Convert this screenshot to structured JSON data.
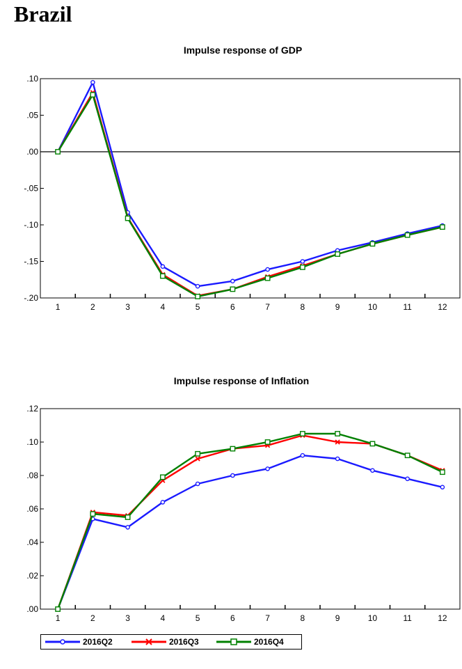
{
  "page": {
    "title": "Brazil"
  },
  "chart_data": [
    {
      "type": "line",
      "title": "Impulse response of GDP",
      "xlabel": "",
      "ylabel": "",
      "categories": [
        "1",
        "2",
        "3",
        "4",
        "5",
        "6",
        "7",
        "8",
        "9",
        "10",
        "11",
        "12"
      ],
      "ylim": [
        -0.2,
        0.1
      ],
      "yticks": [
        ".10",
        ".05",
        ".00",
        "-.05",
        "-.10",
        "-.15",
        "-.20"
      ],
      "zero_line": true,
      "series": [
        {
          "name": "2016Q2",
          "color": "#1a1aff",
          "marker": "circle",
          "values": [
            0.0,
            0.095,
            -0.083,
            -0.157,
            -0.184,
            -0.177,
            -0.161,
            -0.15,
            -0.135,
            -0.124,
            -0.112,
            -0.101
          ]
        },
        {
          "name": "2016Q3",
          "color": "#ff0000",
          "marker": "x",
          "values": [
            0.0,
            0.081,
            -0.09,
            -0.168,
            -0.197,
            -0.188,
            -0.171,
            -0.156,
            -0.14,
            -0.126,
            -0.114,
            -0.103
          ]
        },
        {
          "name": "2016Q4",
          "color": "#008000",
          "marker": "square",
          "values": [
            0.0,
            0.078,
            -0.091,
            -0.17,
            -0.198,
            -0.188,
            -0.173,
            -0.158,
            -0.14,
            -0.126,
            -0.114,
            -0.103
          ]
        }
      ]
    },
    {
      "type": "line",
      "title": "Impulse response of Inflation",
      "xlabel": "",
      "ylabel": "",
      "categories": [
        "1",
        "2",
        "3",
        "4",
        "5",
        "6",
        "7",
        "8",
        "9",
        "10",
        "11",
        "12"
      ],
      "ylim": [
        0.0,
        0.12
      ],
      "yticks": [
        ".12",
        ".10",
        ".08",
        ".06",
        ".04",
        ".02",
        ".00"
      ],
      "zero_line": false,
      "series": [
        {
          "name": "2016Q2",
          "color": "#1a1aff",
          "marker": "circle",
          "values": [
            0.0,
            0.054,
            0.049,
            0.064,
            0.075,
            0.08,
            0.084,
            0.092,
            0.09,
            0.083,
            0.078,
            0.073
          ]
        },
        {
          "name": "2016Q3",
          "color": "#ff0000",
          "marker": "x",
          "values": [
            0.0,
            0.058,
            0.056,
            0.077,
            0.09,
            0.096,
            0.098,
            0.104,
            0.1,
            0.099,
            0.092,
            0.083
          ]
        },
        {
          "name": "2016Q4",
          "color": "#008000",
          "marker": "square",
          "values": [
            0.0,
            0.057,
            0.055,
            0.079,
            0.093,
            0.096,
            0.1,
            0.105,
            0.105,
            0.099,
            0.092,
            0.082
          ]
        }
      ]
    }
  ],
  "legend": {
    "placement": "bottom-left",
    "items": [
      {
        "label": "2016Q2",
        "color": "#1a1aff",
        "marker": "circle"
      },
      {
        "label": "2016Q3",
        "color": "#ff0000",
        "marker": "x"
      },
      {
        "label": "2016Q4",
        "color": "#008000",
        "marker": "square"
      }
    ]
  }
}
